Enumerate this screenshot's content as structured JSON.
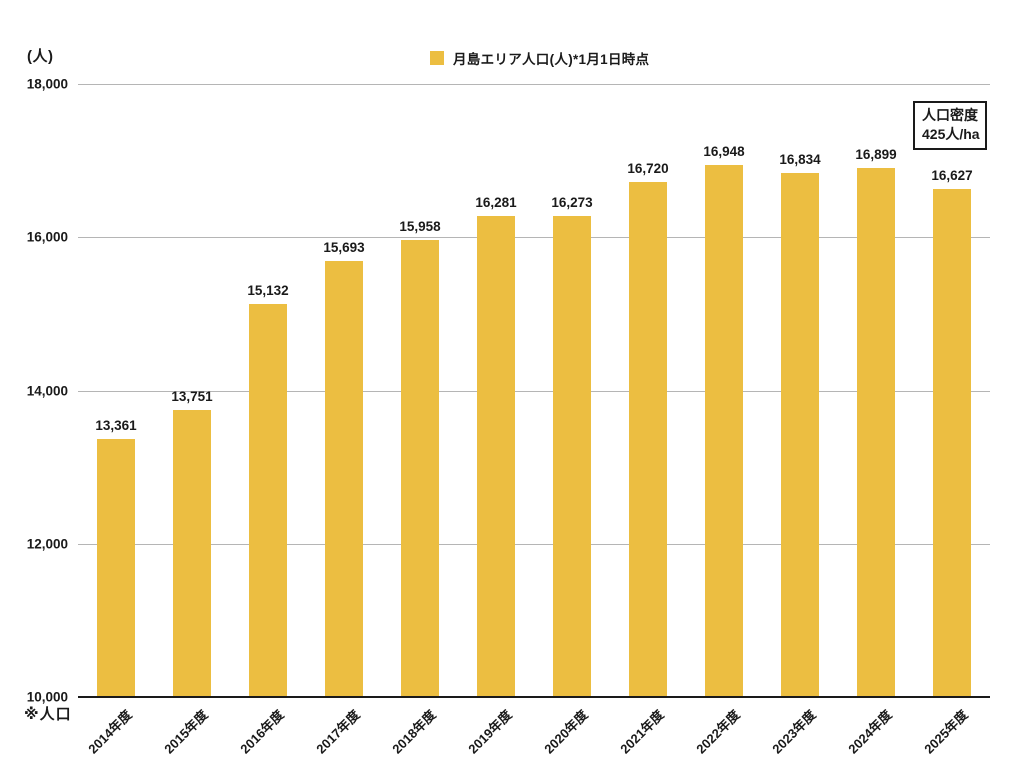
{
  "axis": {
    "unit": "(人)"
  },
  "legend": {
    "label": "月島エリア人口(人)*1月1日時点",
    "swatch_color": "#ECBE41"
  },
  "annotation_box": {
    "line1": "人口密度",
    "line2": "425人/ha"
  },
  "footnote": {
    "text": "※人口"
  },
  "chart_data": {
    "type": "bar",
    "title": "",
    "categories": [
      "2014年度",
      "2015年度",
      "2016年度",
      "2017年度",
      "2018年度",
      "2019年度",
      "2020年度",
      "2021年度",
      "2022年度",
      "2023年度",
      "2024年度",
      "2025年度"
    ],
    "values": [
      13361,
      13751,
      15132,
      15693,
      15958,
      16281,
      16273,
      16720,
      16948,
      16834,
      16899,
      16627
    ],
    "series_name": "月島エリア人口(人)*1月1日時点",
    "xlabel": "",
    "ylabel": "(人)",
    "ylim": [
      10000,
      18000
    ],
    "ytick_interval": 2000,
    "grid": true,
    "legend_position": "top-center",
    "bar_color": "#ECBE41",
    "gridline_color": "#b5b5b5",
    "axis_color": "#1a1a1a",
    "text_color": "#1a1a1a"
  }
}
